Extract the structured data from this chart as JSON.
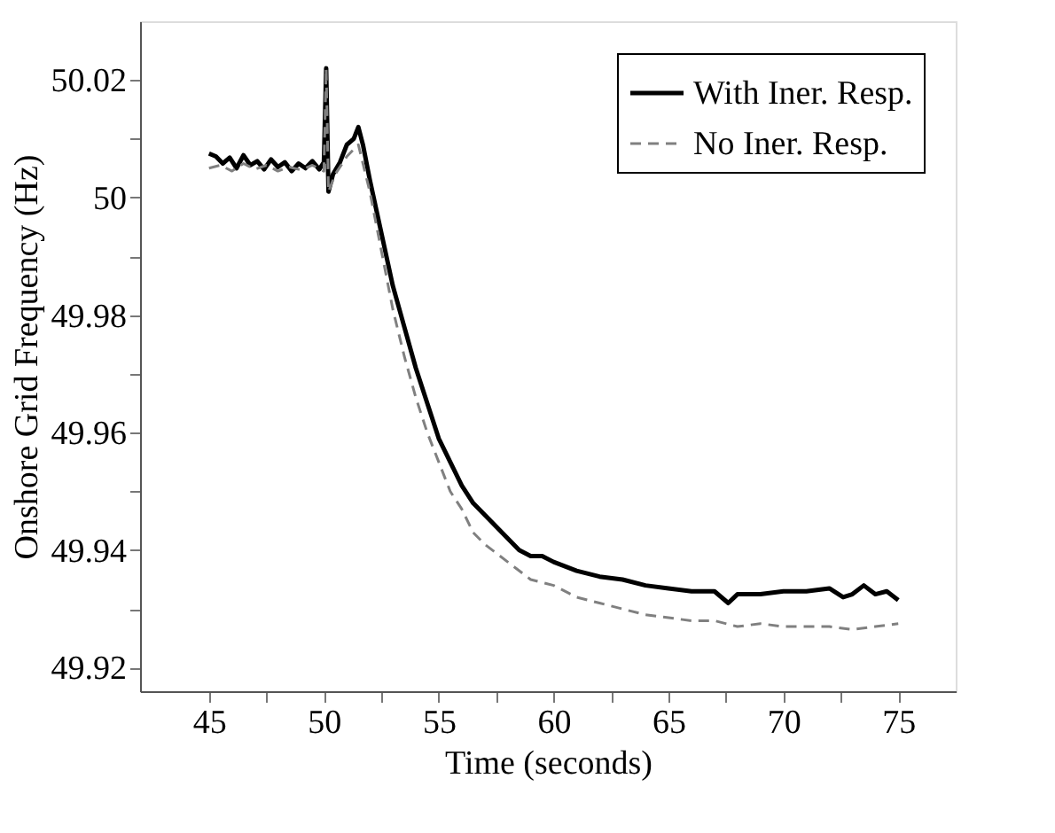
{
  "chart_data": {
    "type": "line",
    "xlabel": "Time (seconds)",
    "ylabel": "Onshore Grid Frequency (Hz)",
    "xlim": [
      42,
      77.5
    ],
    "ylim": [
      49.916,
      50.03
    ],
    "xticks": [
      45,
      {
        "value": 47.5,
        "label": null
      },
      50,
      {
        "value": 52.5,
        "label": null
      },
      55,
      {
        "value": 57.5,
        "label": null
      },
      60,
      {
        "value": 62.5,
        "label": null
      },
      65,
      {
        "value": 67.5,
        "label": null
      },
      70,
      {
        "value": 72.5,
        "label": null
      },
      75
    ],
    "yticks": [
      49.92,
      {
        "value": 49.93,
        "label": null
      },
      49.94,
      {
        "value": 49.95,
        "label": null
      },
      49.96,
      {
        "value": 49.97,
        "label": null
      },
      49.98,
      {
        "value": 49.99,
        "label": null
      },
      {
        "value": 50,
        "label": "50"
      },
      {
        "value": 50.01,
        "label": null
      },
      50.02
    ],
    "grid": false,
    "legend": "top right",
    "marker": "none",
    "series": [
      {
        "name": "With Iner. Resp.",
        "color": "#000000",
        "line_style": "solid",
        "x": [
          45,
          45.3,
          45.6,
          45.9,
          46.2,
          46.5,
          46.8,
          47.1,
          47.4,
          47.7,
          48.0,
          48.3,
          48.6,
          48.9,
          49.2,
          49.5,
          49.8,
          50.0,
          50.1,
          50.2,
          50.4,
          50.7,
          51.0,
          51.3,
          51.5,
          51.7,
          52.0,
          52.5,
          53.0,
          53.5,
          54.0,
          54.5,
          55.0,
          55.5,
          56.0,
          56.5,
          57.0,
          57.5,
          58.0,
          58.5,
          59.0,
          59.5,
          60,
          61,
          62,
          63,
          64,
          65,
          66,
          67,
          67.6,
          68,
          69,
          70,
          71,
          72,
          72.6,
          73,
          73.5,
          74,
          74.5,
          75
        ],
        "values": [
          50.0075,
          50.007,
          50.0058,
          50.0068,
          50.005,
          50.0072,
          50.0055,
          50.0062,
          50.0048,
          50.0065,
          50.0052,
          50.006,
          50.0045,
          50.0058,
          50.005,
          50.0062,
          50.0048,
          50.006,
          50.022,
          50.001,
          50.004,
          50.006,
          50.009,
          50.01,
          50.012,
          50.009,
          50.003,
          49.994,
          49.985,
          49.978,
          49.971,
          49.965,
          49.959,
          49.955,
          49.951,
          49.948,
          49.946,
          49.944,
          49.942,
          49.94,
          49.939,
          49.939,
          49.938,
          49.9365,
          49.9355,
          49.935,
          49.934,
          49.9335,
          49.933,
          49.933,
          49.931,
          49.9325,
          49.9325,
          49.933,
          49.933,
          49.9335,
          49.932,
          49.9325,
          49.934,
          49.9325,
          49.933,
          49.9315
        ]
      },
      {
        "name": "No Iner. Resp.",
        "color": "#808080",
        "line_style": "dashed",
        "x": [
          45,
          45.5,
          46,
          46.5,
          47,
          47.5,
          48,
          48.5,
          49,
          49.5,
          50.0,
          50.1,
          50.2,
          50.5,
          51,
          51.5,
          52,
          52.5,
          53,
          53.5,
          54,
          54.5,
          55,
          55.5,
          56,
          56.5,
          57,
          58,
          59,
          60,
          61,
          62,
          63,
          64,
          65,
          66,
          67,
          68,
          69,
          70,
          71,
          72,
          73,
          74,
          75
        ],
        "values": [
          50.005,
          50.0055,
          50.0045,
          50.0058,
          50.0048,
          50.0055,
          50.0045,
          50.0052,
          50.0047,
          50.0055,
          50.0045,
          50.022,
          50.001,
          50.004,
          50.007,
          50.009,
          50.001,
          49.991,
          49.981,
          49.973,
          49.966,
          49.96,
          49.955,
          49.95,
          49.947,
          49.943,
          49.941,
          49.938,
          49.935,
          49.934,
          49.932,
          49.931,
          49.93,
          49.929,
          49.9285,
          49.928,
          49.928,
          49.927,
          49.9275,
          49.927,
          49.927,
          49.927,
          49.9265,
          49.927,
          49.9275
        ]
      }
    ]
  }
}
